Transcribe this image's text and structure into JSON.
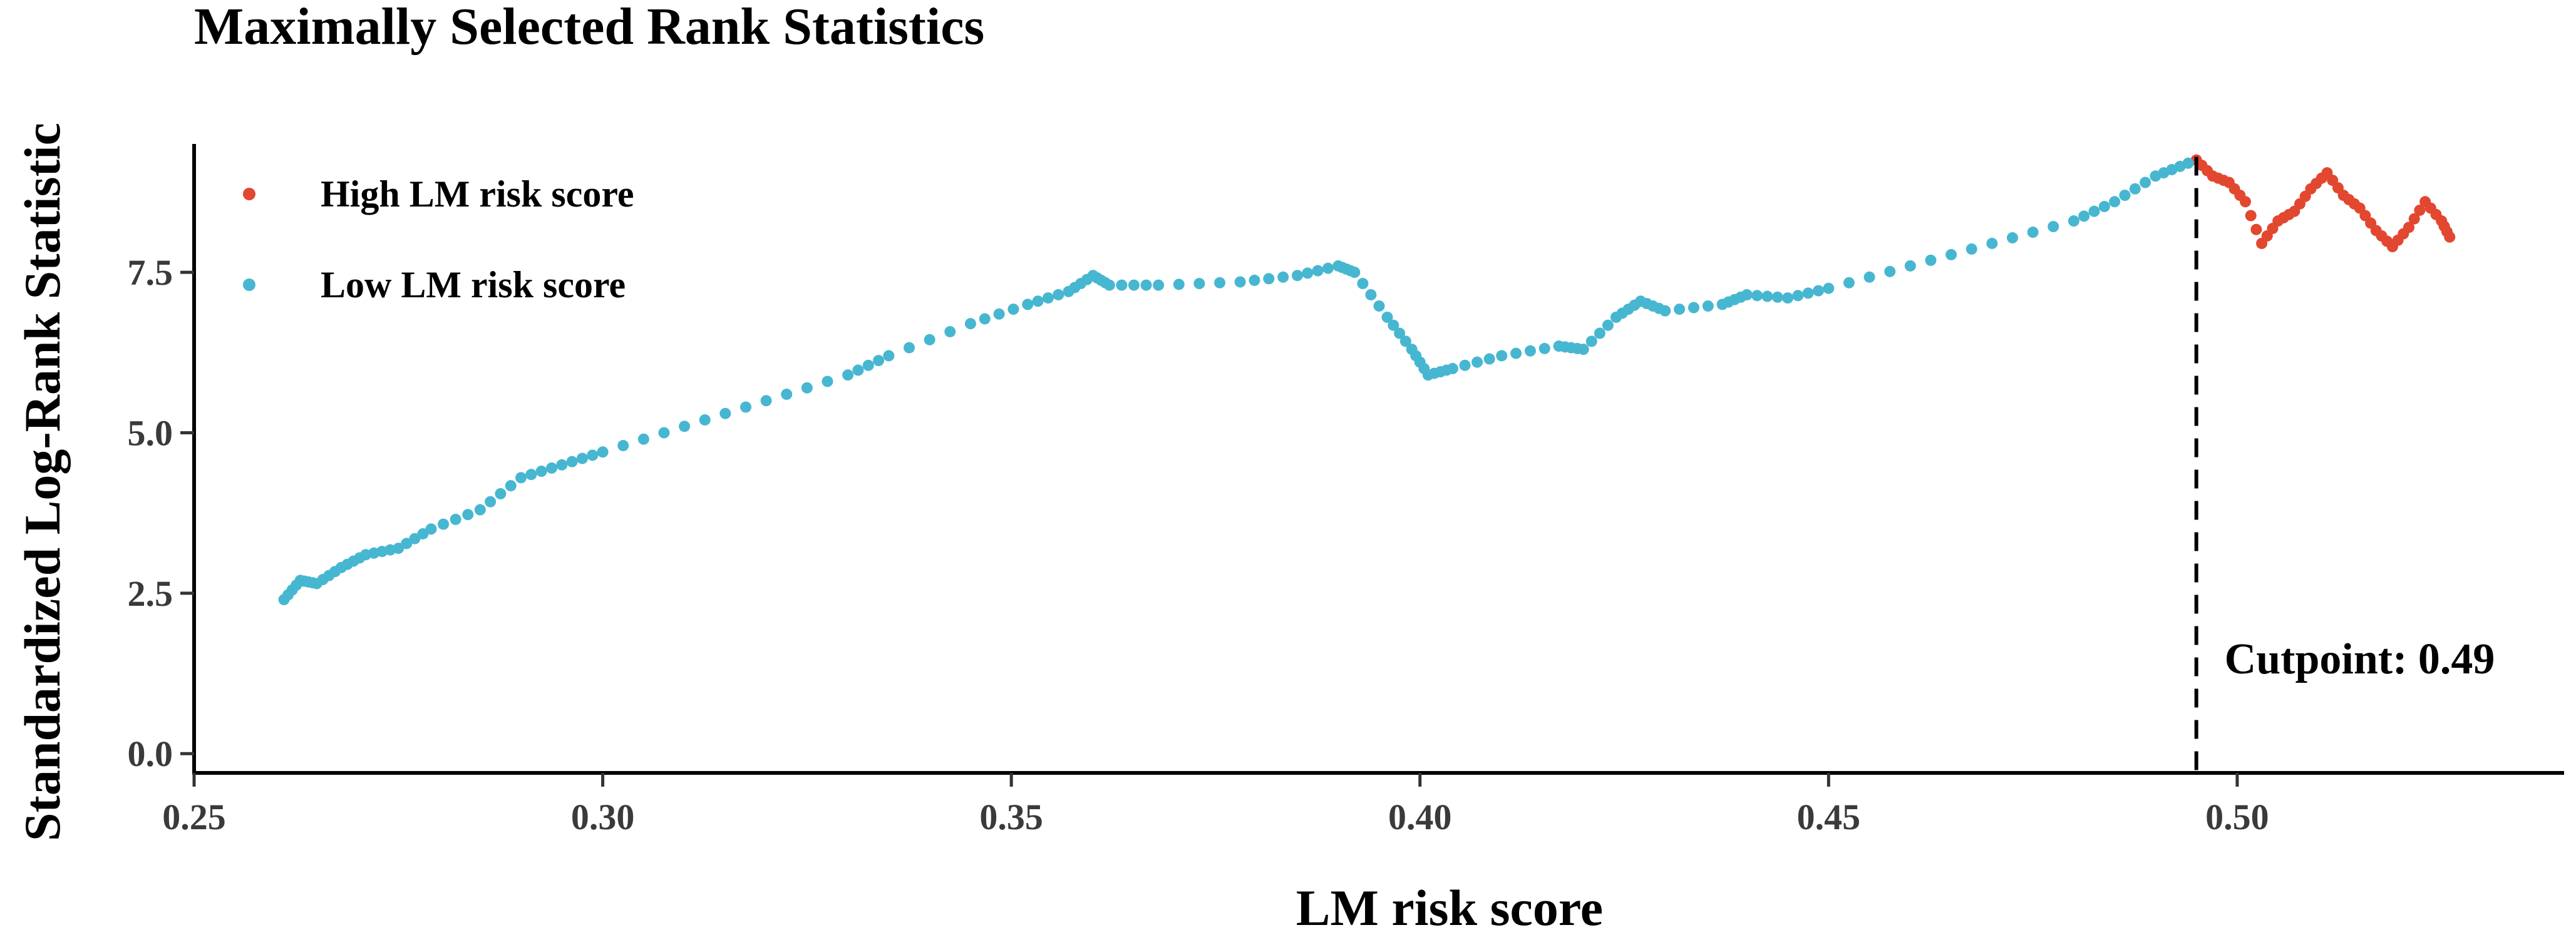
{
  "chart_data": {
    "type": "scatter",
    "title": "Maximally Selected Rank Statistics",
    "xlabel": "LM risk score",
    "ylabel": "Standardized Log-Rank Statistic",
    "xlim": [
      0.25,
      0.54
    ],
    "ylim": [
      -0.3,
      9.5
    ],
    "x_ticks": [
      "0.25",
      "0.30",
      "0.35",
      "0.40",
      "0.45",
      "0.50"
    ],
    "x_tick_values": [
      0.25,
      0.3,
      0.35,
      0.4,
      0.45,
      0.5
    ],
    "y_ticks": [
      "0.0",
      "2.5",
      "5.0",
      "7.5"
    ],
    "y_tick_values": [
      0.0,
      2.5,
      5.0,
      7.5
    ],
    "grid": false,
    "legend_position": "top-left",
    "cutpoint": {
      "value": 0.495,
      "label": "Cutpoint: 0.49"
    },
    "colors": {
      "low": "#47B7D1",
      "high": "#E2472F"
    },
    "series": [
      {
        "name": "High LM risk score",
        "color": "#E2472F",
        "anchors": [
          [
            0.495,
            9.25
          ],
          [
            0.497,
            9.0
          ],
          [
            0.499,
            8.9
          ],
          [
            0.501,
            8.6
          ],
          [
            0.503,
            7.95
          ],
          [
            0.505,
            8.3
          ],
          [
            0.507,
            8.45
          ],
          [
            0.509,
            8.8
          ],
          [
            0.511,
            9.05
          ],
          [
            0.513,
            8.7
          ],
          [
            0.515,
            8.5
          ],
          [
            0.517,
            8.15
          ],
          [
            0.519,
            7.9
          ],
          [
            0.521,
            8.2
          ],
          [
            0.523,
            8.6
          ],
          [
            0.525,
            8.3
          ],
          [
            0.526,
            8.05
          ]
        ],
        "points_per_segment": 3
      },
      {
        "name": "Low LM risk score",
        "color": "#47B7D1",
        "anchors": [
          [
            0.261,
            2.4
          ],
          [
            0.263,
            2.7
          ],
          [
            0.265,
            2.65
          ],
          [
            0.268,
            2.9
          ],
          [
            0.271,
            3.1
          ],
          [
            0.275,
            3.2
          ],
          [
            0.279,
            3.5
          ],
          [
            0.285,
            3.8
          ],
          [
            0.29,
            4.3
          ],
          [
            0.295,
            4.5
          ],
          [
            0.3,
            4.7
          ],
          [
            0.31,
            5.1
          ],
          [
            0.32,
            5.5
          ],
          [
            0.33,
            5.9
          ],
          [
            0.335,
            6.2
          ],
          [
            0.345,
            6.7
          ],
          [
            0.352,
            7.0
          ],
          [
            0.357,
            7.2
          ],
          [
            0.36,
            7.45
          ],
          [
            0.362,
            7.3
          ],
          [
            0.368,
            7.3
          ],
          [
            0.378,
            7.35
          ],
          [
            0.385,
            7.45
          ],
          [
            0.39,
            7.6
          ],
          [
            0.392,
            7.5
          ],
          [
            0.396,
            6.8
          ],
          [
            0.399,
            6.3
          ],
          [
            0.401,
            5.9
          ],
          [
            0.404,
            6.0
          ],
          [
            0.41,
            6.2
          ],
          [
            0.417,
            6.35
          ],
          [
            0.42,
            6.3
          ],
          [
            0.424,
            6.8
          ],
          [
            0.427,
            7.05
          ],
          [
            0.43,
            6.9
          ],
          [
            0.437,
            7.0
          ],
          [
            0.44,
            7.15
          ],
          [
            0.445,
            7.1
          ],
          [
            0.45,
            7.25
          ],
          [
            0.46,
            7.6
          ],
          [
            0.47,
            7.95
          ],
          [
            0.48,
            8.3
          ],
          [
            0.485,
            8.6
          ],
          [
            0.49,
            9.0
          ],
          [
            0.494,
            9.2
          ]
        ],
        "points_per_segment": 4
      }
    ]
  }
}
